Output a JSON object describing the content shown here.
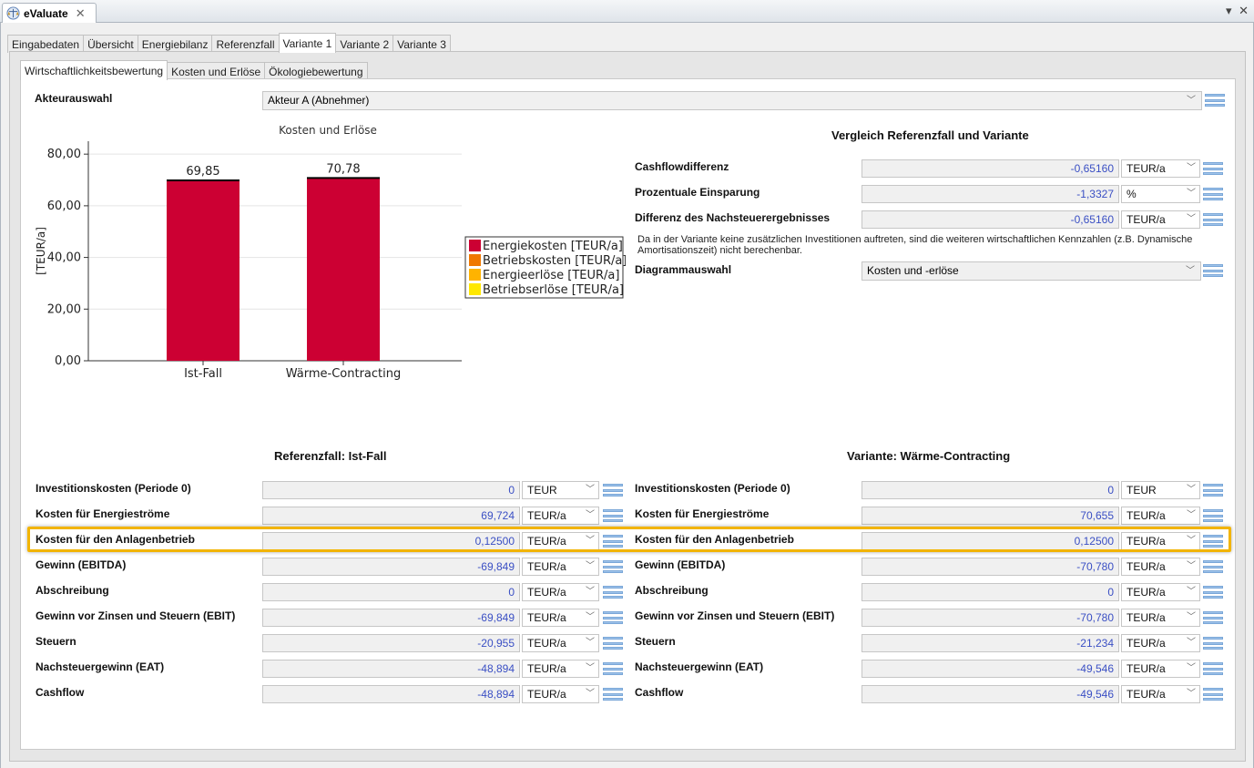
{
  "window": {
    "tab_title": "eValuate",
    "controls": "▾ ✕"
  },
  "main_tabs": [
    "Eingabedaten",
    "Übersicht",
    "Energiebilanz",
    "Referenzfall",
    "Variante 1",
    "Variante 2",
    "Variante 3"
  ],
  "active_main_tab": 4,
  "sub_tabs": [
    "Wirtschaftlichkeitsbewertung",
    "Kosten und Erlöse",
    "Ökologiebewertung"
  ],
  "active_sub_tab": 0,
  "akteur": {
    "label": "Akteurauswahl",
    "value": "Akteur A (Abnehmer)"
  },
  "vergleich": {
    "title": "Vergleich Referenzfall und Variante",
    "rows": [
      {
        "label": "Cashflowdifferenz",
        "value": "-0,65160",
        "unit": "TEUR/a"
      },
      {
        "label": "Prozentuale Einsparung",
        "value": "-1,3327",
        "unit": "%"
      },
      {
        "label": "Differenz des Nachsteuerergebnisses",
        "value": "-0,65160",
        "unit": "TEUR/a"
      }
    ],
    "info": "Da in der Variante keine zusätzlichen Investitionen auftreten, sind die weiteren wirtschaftlichen Kennzahlen (z.B. Dynamische Amortisationszeit) nicht berechenbar.",
    "diagramm_label": "Diagrammauswahl",
    "diagramm_value": "Kosten und -erlöse"
  },
  "chart_data": {
    "type": "bar",
    "title": "Kosten und Erlöse",
    "ylabel": "[TEUR/a]",
    "xlabel": "",
    "categories": [
      "Ist-Fall",
      "Wärme-Contracting"
    ],
    "series": [
      {
        "name": "Energiekosten [TEUR/a]",
        "color": "#cc0033",
        "values": [
          69.85,
          70.78
        ]
      },
      {
        "name": "Betriebskosten [TEUR/a]",
        "color": "#f07800",
        "values": [
          0,
          0
        ]
      },
      {
        "name": "Energieerlöse [TEUR/a]",
        "color": "#ffb300",
        "values": [
          0,
          0
        ]
      },
      {
        "name": "Betriebserlöse [TEUR/a]",
        "color": "#ffe800",
        "values": [
          0,
          0
        ]
      }
    ],
    "data_labels": [
      "69,85",
      "70,78"
    ],
    "yticks": [
      "0,00",
      "20,00",
      "40,00",
      "60,00",
      "80,00"
    ],
    "ylim": [
      0,
      85
    ],
    "legend_position": "right",
    "grid": true
  },
  "ref": {
    "title": "Referenzfall: Ist-Fall",
    "rows": [
      {
        "label": "Investitionskosten (Periode 0)",
        "value": "0",
        "unit": "TEUR"
      },
      {
        "label": "Kosten für Energieströme",
        "value": "69,724",
        "unit": "TEUR/a"
      },
      {
        "label": "Kosten für den Anlagenbetrieb",
        "value": "0,12500",
        "unit": "TEUR/a"
      },
      {
        "label": "Gewinn (EBITDA)",
        "value": "-69,849",
        "unit": "TEUR/a"
      },
      {
        "label": "Abschreibung",
        "value": "0",
        "unit": "TEUR/a"
      },
      {
        "label": "Gewinn vor Zinsen und Steuern (EBIT)",
        "value": "-69,849",
        "unit": "TEUR/a"
      },
      {
        "label": "Steuern",
        "value": "-20,955",
        "unit": "TEUR/a"
      },
      {
        "label": "Nachsteuergewinn (EAT)",
        "value": "-48,894",
        "unit": "TEUR/a"
      },
      {
        "label": "Cashflow",
        "value": "-48,894",
        "unit": "TEUR/a"
      }
    ]
  },
  "var": {
    "title": "Variante: Wärme-Contracting",
    "rows": [
      {
        "label": "Investitionskosten (Periode 0)",
        "value": "0",
        "unit": "TEUR"
      },
      {
        "label": "Kosten für Energieströme",
        "value": "70,655",
        "unit": "TEUR/a"
      },
      {
        "label": "Kosten für den Anlagenbetrieb",
        "value": "0,12500",
        "unit": "TEUR/a"
      },
      {
        "label": "Gewinn (EBITDA)",
        "value": "-70,780",
        "unit": "TEUR/a"
      },
      {
        "label": "Abschreibung",
        "value": "0",
        "unit": "TEUR/a"
      },
      {
        "label": "Gewinn vor Zinsen und Steuern (EBIT)",
        "value": "-70,780",
        "unit": "TEUR/a"
      },
      {
        "label": "Steuern",
        "value": "-21,234",
        "unit": "TEUR/a"
      },
      {
        "label": "Nachsteuergewinn (EAT)",
        "value": "-49,546",
        "unit": "TEUR/a"
      },
      {
        "label": "Cashflow",
        "value": "-49,546",
        "unit": "TEUR/a"
      }
    ]
  },
  "highlight_row": 2
}
